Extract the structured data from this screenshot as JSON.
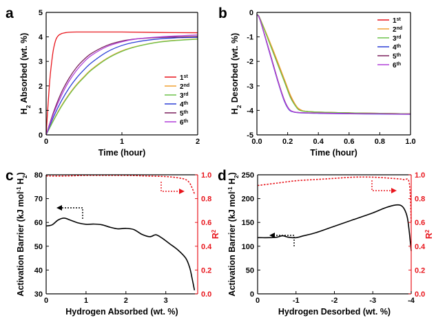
{
  "chart_data": [
    {
      "id": "a",
      "panel_label": "a",
      "type": "line",
      "xlabel": "Time (hour)",
      "ylabel_main": "H",
      "ylabel_sub": "2",
      "ylabel_rest": " Absorbed (wt. %)",
      "xlim": [
        0,
        2
      ],
      "ylim": [
        0,
        5
      ],
      "xticks": [
        0,
        1,
        2
      ],
      "yticks": [
        0,
        1,
        2,
        3,
        4,
        5
      ],
      "legend_position": "bottom-right",
      "series": [
        {
          "name": "1",
          "sup": "st",
          "color": "#e8141b",
          "x": [
            0,
            0.02,
            0.05,
            0.08,
            0.1,
            0.13,
            0.16,
            0.2,
            0.25,
            0.3,
            0.4,
            0.6,
            1.0,
            1.5,
            2.0
          ],
          "y": [
            0,
            1.0,
            2.3,
            3.15,
            3.55,
            3.9,
            4.05,
            4.13,
            4.17,
            4.19,
            4.2,
            4.2,
            4.2,
            4.18,
            4.17
          ]
        },
        {
          "name": "2",
          "sup": "nd",
          "color": "#f0a030",
          "x": [
            0,
            0.1,
            0.2,
            0.3,
            0.4,
            0.5,
            0.6,
            0.8,
            1.0,
            1.2,
            1.5,
            1.8,
            2.0
          ],
          "y": [
            0,
            0.62,
            1.18,
            1.65,
            2.05,
            2.38,
            2.68,
            3.12,
            3.43,
            3.62,
            3.8,
            3.88,
            3.92
          ]
        },
        {
          "name": "3",
          "sup": "rd",
          "color": "#6cc24a",
          "x": [
            0,
            0.1,
            0.2,
            0.3,
            0.4,
            0.5,
            0.6,
            0.8,
            1.0,
            1.2,
            1.5,
            1.8,
            2.0
          ],
          "y": [
            0,
            0.6,
            1.15,
            1.62,
            2.02,
            2.35,
            2.65,
            3.1,
            3.41,
            3.61,
            3.79,
            3.87,
            3.91
          ]
        },
        {
          "name": "4",
          "sup": "th",
          "color": "#2b3fd6",
          "x": [
            0,
            0.1,
            0.2,
            0.3,
            0.4,
            0.5,
            0.6,
            0.8,
            1.0,
            1.2,
            1.5,
            1.8,
            2.0
          ],
          "y": [
            0,
            0.75,
            1.38,
            1.9,
            2.32,
            2.66,
            2.95,
            3.38,
            3.65,
            3.8,
            3.92,
            3.97,
            3.98
          ]
        },
        {
          "name": "5",
          "sup": "th",
          "color": "#7a1f5c",
          "x": [
            0,
            0.1,
            0.2,
            0.3,
            0.4,
            0.5,
            0.6,
            0.8,
            1.0,
            1.2,
            1.5,
            1.8,
            2.0
          ],
          "y": [
            0,
            0.95,
            1.72,
            2.3,
            2.75,
            3.08,
            3.33,
            3.65,
            3.83,
            3.92,
            3.98,
            4.0,
            4.02
          ]
        },
        {
          "name": "6",
          "sup": "th",
          "color": "#b13fd9",
          "x": [
            0,
            0.1,
            0.2,
            0.3,
            0.4,
            0.5,
            0.6,
            0.8,
            1.0,
            1.2,
            1.5,
            1.8,
            2.0
          ],
          "y": [
            0,
            0.88,
            1.6,
            2.18,
            2.63,
            2.98,
            3.25,
            3.6,
            3.8,
            3.92,
            4.0,
            4.05,
            4.08
          ]
        }
      ]
    },
    {
      "id": "b",
      "panel_label": "b",
      "type": "line",
      "xlabel": "Time (hour)",
      "ylabel_main": "H",
      "ylabel_sub": "2",
      "ylabel_rest": " Desorbed (wt. %)",
      "xlim": [
        0,
        1.0
      ],
      "ylim": [
        -5,
        0
      ],
      "xticks": [
        0.0,
        0.2,
        0.4,
        0.6,
        0.8,
        1.0
      ],
      "xtick_labels": [
        "0.0",
        "0.2",
        "0.4",
        "0.6",
        "0.8",
        "1.0"
      ],
      "yticks": [
        0,
        -1,
        -2,
        -3,
        -4,
        -5
      ],
      "legend_position": "top-right",
      "series": [
        {
          "name": "1",
          "sup": "st",
          "color": "#e8141b",
          "x": [
            0,
            0.02,
            0.1,
            0.18,
            0.22,
            0.26,
            0.29,
            0.32,
            0.4,
            0.6,
            0.8,
            1.0
          ],
          "y": [
            -0.1,
            -0.25,
            -1.5,
            -2.8,
            -3.45,
            -3.88,
            -4.0,
            -4.04,
            -4.07,
            -4.1,
            -4.12,
            -4.14
          ]
        },
        {
          "name": "2",
          "sup": "nd",
          "color": "#f0a030",
          "x": [
            0,
            0.02,
            0.1,
            0.18,
            0.22,
            0.26,
            0.29,
            0.32,
            0.4,
            0.6,
            0.8,
            1.0
          ],
          "y": [
            -0.1,
            -0.25,
            -1.45,
            -2.75,
            -3.4,
            -3.85,
            -3.99,
            -4.04,
            -4.07,
            -4.1,
            -4.12,
            -4.14
          ]
        },
        {
          "name": "3",
          "sup": "rd",
          "color": "#6cc24a",
          "x": [
            0,
            0.02,
            0.1,
            0.18,
            0.22,
            0.26,
            0.28,
            0.31,
            0.4,
            0.6,
            0.8,
            1.0
          ],
          "y": [
            -0.1,
            -0.25,
            -1.55,
            -2.85,
            -3.5,
            -3.9,
            -4.0,
            -4.04,
            -4.07,
            -4.1,
            -4.12,
            -4.14
          ]
        },
        {
          "name": "4",
          "sup": "th",
          "color": "#2b3fd6",
          "x": [
            0,
            0.02,
            0.08,
            0.14,
            0.18,
            0.21,
            0.24,
            0.28,
            0.4,
            0.6,
            0.8,
            1.0
          ],
          "y": [
            -0.1,
            -0.3,
            -1.6,
            -2.9,
            -3.65,
            -3.98,
            -4.07,
            -4.1,
            -4.12,
            -4.14,
            -4.15,
            -4.16
          ]
        },
        {
          "name": "5",
          "sup": "th",
          "color": "#7a1f5c",
          "x": [
            0,
            0.02,
            0.08,
            0.14,
            0.18,
            0.21,
            0.24,
            0.28,
            0.4,
            0.6,
            0.8,
            1.0
          ],
          "y": [
            -0.1,
            -0.3,
            -1.55,
            -2.85,
            -3.6,
            -3.95,
            -4.06,
            -4.09,
            -4.11,
            -4.13,
            -4.14,
            -4.15
          ]
        },
        {
          "name": "6",
          "sup": "th",
          "color": "#b13fd9",
          "x": [
            0,
            0.02,
            0.08,
            0.14,
            0.18,
            0.21,
            0.24,
            0.28,
            0.4,
            0.6,
            0.8,
            1.0
          ],
          "y": [
            -0.1,
            -0.3,
            -1.58,
            -2.88,
            -3.62,
            -3.96,
            -4.06,
            -4.09,
            -4.11,
            -4.13,
            -4.14,
            -4.15
          ]
        }
      ]
    },
    {
      "id": "c",
      "panel_label": "c",
      "type": "line",
      "xlabel": "Hydrogen Absorbed (wt. %)",
      "ylabel_main": "Activation Barrier (kJ mol",
      "ylabel_sup": "-1",
      "ylabel_rest": " H",
      "ylabel_sub": "2",
      "ylabel_end": ")",
      "y2label": "R",
      "y2label_sup": "2",
      "xlim": [
        0,
        3.8
      ],
      "ylim": [
        30,
        80
      ],
      "y2lim": [
        0.0,
        1.0
      ],
      "xticks": [
        0,
        1,
        2,
        3
      ],
      "yticks": [
        30,
        40,
        50,
        60,
        70,
        80
      ],
      "y2ticks": [
        0.0,
        0.2,
        0.4,
        0.6,
        0.8,
        1.0
      ],
      "y2tick_labels": [
        "0.0",
        "0.2",
        "0.4",
        "0.6",
        "0.8",
        "1.0"
      ],
      "series": [
        {
          "name": "",
          "axis": "left",
          "color": "#000000",
          "style": "solid",
          "x": [
            0,
            0.15,
            0.3,
            0.45,
            0.6,
            0.8,
            1.0,
            1.2,
            1.4,
            1.6,
            1.8,
            2.0,
            2.2,
            2.4,
            2.6,
            2.75,
            2.9,
            3.1,
            3.3,
            3.5,
            3.6,
            3.66,
            3.72
          ],
          "y": [
            58.5,
            59.0,
            61.0,
            61.8,
            61.0,
            59.8,
            59.2,
            59.3,
            59.0,
            58.0,
            57.3,
            57.5,
            57.0,
            55.0,
            54.0,
            54.8,
            53.5,
            51.0,
            48.5,
            45.0,
            41.0,
            36.5,
            31.5
          ]
        },
        {
          "name": "",
          "axis": "right",
          "color": "#e8141b",
          "style": "dotted",
          "x": [
            0,
            0.5,
            1.0,
            1.5,
            2.0,
            2.5,
            3.0,
            3.3,
            3.5,
            3.6,
            3.66,
            3.72
          ],
          "y": [
            0.99,
            0.99,
            0.995,
            0.995,
            0.995,
            0.99,
            0.985,
            0.975,
            0.96,
            0.93,
            0.89,
            0.84
          ]
        }
      ],
      "arrow_left": "points toward left axis (black curve)",
      "arrow_right": "points toward right axis (red curve)"
    },
    {
      "id": "d",
      "panel_label": "d",
      "type": "line",
      "xlabel": "Hydrogen Desorbed (wt. %)",
      "ylabel_main": "Activation Barrier (kJ mol",
      "ylabel_sup": "-1",
      "ylabel_rest": " H",
      "ylabel_sub": "2",
      "ylabel_end": ")",
      "y2label": "R",
      "y2label_sup": "2",
      "xlim": [
        0,
        -4
      ],
      "ylim": [
        0,
        250
      ],
      "y2lim": [
        0.0,
        1.0
      ],
      "xticks": [
        0,
        -1,
        -2,
        -3,
        -4
      ],
      "yticks": [
        0,
        50,
        100,
        150,
        200,
        250
      ],
      "y2ticks": [
        0.0,
        0.2,
        0.4,
        0.6,
        0.8,
        1.0
      ],
      "y2tick_labels": [
        "0.0",
        "0.2",
        "0.4",
        "0.6",
        "0.8",
        "1.0"
      ],
      "series": [
        {
          "name": "",
          "axis": "left",
          "color": "#000000",
          "style": "solid",
          "x": [
            0,
            -0.3,
            -0.5,
            -0.65,
            -0.8,
            -1.0,
            -1.2,
            -1.5,
            -2.0,
            -2.5,
            -3.0,
            -3.3,
            -3.55,
            -3.72,
            -3.82,
            -3.9,
            -3.95,
            -4.0
          ],
          "y": [
            118,
            118,
            119,
            122,
            119,
            118,
            122,
            128,
            142,
            156,
            170,
            180,
            186,
            186,
            178,
            160,
            130,
            90
          ]
        },
        {
          "name": "",
          "axis": "right",
          "color": "#e8141b",
          "style": "dotted",
          "x": [
            0,
            -0.5,
            -1.0,
            -1.5,
            -2.0,
            -2.5,
            -3.0,
            -3.5,
            -3.8,
            -3.95,
            -4.0
          ],
          "y": [
            0.91,
            0.93,
            0.95,
            0.96,
            0.97,
            0.98,
            0.98,
            0.97,
            0.96,
            0.93,
            0.6
          ]
        }
      ],
      "arrow_left": "points toward left axis (black curve)",
      "arrow_right": "points toward right axis (red curve)"
    }
  ]
}
